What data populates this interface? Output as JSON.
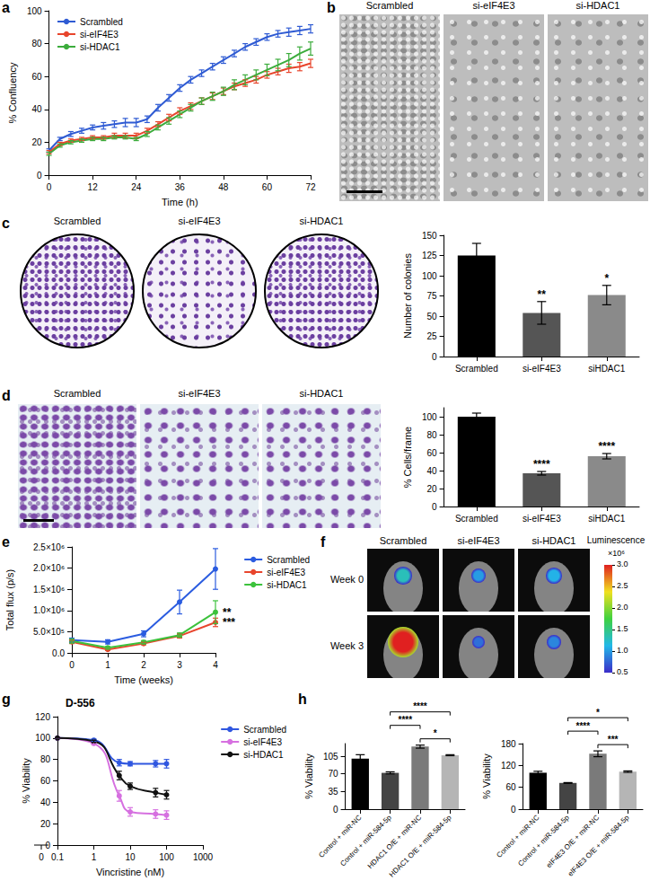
{
  "chart_data": [
    {
      "panel": "a",
      "type": "line",
      "x_label": "Time (h)",
      "y_label": "% Confluency",
      "x": [
        0,
        3,
        6,
        9,
        12,
        15,
        18,
        21,
        24,
        27,
        30,
        33,
        36,
        39,
        42,
        45,
        48,
        51,
        54,
        57,
        60,
        63,
        66,
        69,
        72
      ],
      "xlim": [
        0,
        72
      ],
      "xticks": [
        0,
        12,
        24,
        36,
        48,
        60,
        72
      ],
      "ylim": [
        0,
        100
      ],
      "yticks": [
        0,
        20,
        40,
        60,
        80,
        100
      ],
      "grid": false,
      "legend": "upper left",
      "marker": "none",
      "series": [
        {
          "name": "Scrambled",
          "color": "#2f5bd3",
          "values": [
            15,
            22,
            25,
            27,
            29,
            30,
            31,
            32,
            32,
            34,
            41,
            47,
            53,
            58,
            62,
            66,
            70,
            74,
            78,
            81,
            84,
            86,
            87,
            88,
            89
          ],
          "errors": [
            1,
            1,
            1.5,
            1.5,
            1.5,
            2,
            2,
            2.5,
            2.5,
            2,
            2,
            2,
            2,
            2,
            2,
            2,
            2,
            2,
            2,
            2,
            2,
            2,
            2.5,
            2.5,
            2.5
          ]
        },
        {
          "name": "si-eIF4E3",
          "color": "#e8452c",
          "values": [
            14,
            19,
            21,
            22,
            23,
            23,
            24,
            24,
            24,
            27,
            31,
            35,
            39,
            42,
            45,
            48,
            51,
            54,
            56,
            58,
            61,
            63,
            65,
            66,
            68
          ],
          "errors": [
            1,
            1,
            1,
            1,
            1,
            1,
            1.5,
            1.5,
            1.5,
            1.5,
            1.5,
            2,
            2,
            2,
            2,
            2,
            2,
            2,
            2,
            2,
            2,
            2,
            2.5,
            2.5,
            2.5
          ]
        },
        {
          "name": "si-HDAC1",
          "color": "#3cac3c",
          "values": [
            13,
            18,
            20,
            21,
            22,
            22,
            23,
            23,
            22,
            25,
            29,
            33,
            37,
            41,
            45,
            48,
            51,
            55,
            58,
            61,
            64,
            67,
            70,
            74,
            77
          ],
          "errors": [
            1,
            1,
            1,
            1,
            1,
            1,
            1,
            1,
            1,
            1.5,
            1.5,
            2,
            2,
            2,
            2,
            2.5,
            2.5,
            3,
            3,
            3,
            3.5,
            3.5,
            4,
            4,
            4
          ]
        }
      ]
    },
    {
      "panel": "c",
      "type": "bar",
      "y_label": "Number of colonies",
      "categories": [
        "Scrambled",
        "si-eIF4E3",
        "siHDAC1"
      ],
      "values": [
        125,
        54,
        76
      ],
      "errors": [
        15,
        14,
        12
      ],
      "colors": [
        "#000000",
        "#555555",
        "#8a8a8a"
      ],
      "significance": [
        null,
        "**",
        "*"
      ],
      "ylim": [
        0,
        150
      ],
      "yticks": [
        0,
        25,
        50,
        75,
        100,
        125,
        150
      ],
      "grid": false
    },
    {
      "panel": "d",
      "type": "bar",
      "y_label": "% Cells/frame",
      "categories": [
        "Scrambled",
        "si-eIF4E3",
        "siHDAC1"
      ],
      "values": [
        100,
        37,
        56
      ],
      "errors": [
        4,
        2,
        3
      ],
      "colors": [
        "#000000",
        "#555555",
        "#8a8a8a"
      ],
      "significance": [
        null,
        "****",
        "****"
      ],
      "ylim": [
        0,
        110
      ],
      "yticks": [
        0,
        20,
        40,
        60,
        80,
        100
      ],
      "grid": false
    },
    {
      "panel": "e",
      "type": "line",
      "x_label": "Time (weeks)",
      "y_label": "Total flux (p/s)",
      "x": [
        0,
        1,
        2,
        3,
        4
      ],
      "xlim": [
        0,
        4
      ],
      "xticks": [
        0,
        1,
        2,
        3,
        4
      ],
      "ylim": [
        0,
        2500000
      ],
      "yticks": [
        {
          "value": 0,
          "label": "0.0"
        },
        {
          "value": 500000,
          "label": "5.0×10⁵"
        },
        {
          "value": 1000000,
          "label": "1.0×10⁶"
        },
        {
          "value": 1500000,
          "label": "1.5×10⁶"
        },
        {
          "value": 2000000,
          "label": "2.0×10⁶"
        },
        {
          "value": 2500000,
          "label": "2.5×10⁶"
        }
      ],
      "grid": false,
      "legend": "right",
      "marker": "circle",
      "series": [
        {
          "name": "Scrambled",
          "color": "#2b5ce0",
          "values": [
            300000,
            260000,
            450000,
            1200000,
            1980000
          ],
          "errors": [
            50000,
            50000,
            70000,
            280000,
            480000
          ]
        },
        {
          "name": "si-eIF4E3",
          "color": "#e8452c",
          "values": [
            260000,
            80000,
            220000,
            400000,
            720000
          ],
          "errors": [
            40000,
            20000,
            30000,
            50000,
            100000
          ],
          "significance": "***"
        },
        {
          "name": "si-HDAC1",
          "color": "#3cc23c",
          "values": [
            280000,
            120000,
            250000,
            420000,
            960000
          ],
          "errors": [
            50000,
            30000,
            40000,
            50000,
            270000
          ],
          "significance": "**"
        }
      ]
    },
    {
      "panel": "g",
      "type": "line",
      "title": "D-556",
      "x_label": "Vincristine (nM)",
      "y_label": "% Viability",
      "log": "x",
      "x_origin_label": "0",
      "x": [
        0.1,
        1,
        5,
        10,
        50,
        100
      ],
      "xlim": [
        0.1,
        1000
      ],
      "xticks": [
        0.1,
        1,
        10,
        100,
        1000
      ],
      "ylim": [
        0,
        120
      ],
      "yticks": [
        0,
        20,
        40,
        60,
        80,
        100,
        120
      ],
      "grid": false,
      "legend": "right",
      "marker": "circle",
      "line_style": "smooth",
      "series": [
        {
          "name": "Scrambled",
          "color": "#3057e0",
          "values": [
            100,
            98,
            77,
            76,
            76,
            76
          ],
          "errors": [
            0,
            1,
            3,
            2,
            3,
            4
          ]
        },
        {
          "name": "si-eIF4E3",
          "color": "#d670e0",
          "values": [
            100,
            95,
            46,
            31,
            29,
            28
          ],
          "errors": [
            0,
            1,
            5,
            4,
            4,
            4
          ]
        },
        {
          "name": "si-HDAC1",
          "color": "#111111",
          "values": [
            100,
            97,
            65,
            55,
            49,
            47
          ],
          "errors": [
            0,
            1,
            4,
            3,
            4,
            4
          ]
        }
      ]
    },
    {
      "panel": "h",
      "type": "bar",
      "y_label": "% Viability",
      "categories": [
        "Control + miR-NC",
        "Control + miR-584-5p",
        "HDAC1 O/E + miR-NC",
        "HDAC1 O/E + miR-584-5p"
      ],
      "values": [
        100,
        72,
        124,
        107
      ],
      "errors": [
        8,
        2,
        3,
        1
      ],
      "colors": [
        "#000000",
        "#444444",
        "#7a7a7a",
        "#b5b5b5"
      ],
      "comparisons": [
        {
          "from": 2,
          "to": 3,
          "label": "*"
        },
        {
          "from": 1,
          "to": 2,
          "label": "****"
        },
        {
          "from": 1,
          "to": 3,
          "label": "****"
        }
      ],
      "ylim": [
        0,
        130
      ],
      "yticks": [
        0,
        35,
        70,
        105
      ],
      "grid": false
    },
    {
      "type": "bar",
      "y_label": "% Viability",
      "categories": [
        "Control + miR-NC",
        "Control + miR-584-5p",
        "eIF4E3 O/E + miR-NC",
        "eIF4E3 O/E + miR-584-5p"
      ],
      "values": [
        100,
        72,
        152,
        103
      ],
      "errors": [
        4,
        1,
        8,
        2
      ],
      "colors": [
        "#000000",
        "#444444",
        "#7a7a7a",
        "#b5b5b5"
      ],
      "comparisons": [
        {
          "from": 2,
          "to": 3,
          "label": "***"
        },
        {
          "from": 1,
          "to": 2,
          "label": "****"
        },
        {
          "from": 1,
          "to": 3,
          "label": "*"
        }
      ],
      "ylim": [
        0,
        180
      ],
      "yticks": [
        0,
        60,
        120,
        180
      ],
      "grid": false
    }
  ],
  "image_panels": [
    {
      "panel": "b",
      "type": "micrograph",
      "labels": [
        "Scrambled",
        "si-eIF4E3",
        "si-HDAC1"
      ]
    },
    {
      "panel": "c",
      "type": "plate",
      "labels": [
        "Scrambled",
        "si-eIF4E3",
        "si-HDAC1"
      ]
    },
    {
      "panel": "d",
      "type": "transwell",
      "labels": [
        "Scrambled",
        "si-eIF4E3",
        "si-HDAC1"
      ]
    },
    {
      "panel": "f",
      "type": "bioluminescence",
      "labels": [
        "Scrambled",
        "si-eIF4E3",
        "si-HDAC1"
      ],
      "rows": [
        "Week 0",
        "Week 3"
      ],
      "signal": [
        [
          1.3,
          1.0,
          1.1
        ],
        [
          3.0,
          0.8,
          0.9
        ]
      ],
      "colorbar": {
        "title": "Luminescence",
        "range": [
          0.5,
          3
        ],
        "ticks": [
          0.5,
          {
            "value": 1,
            "label": "1.0"
          },
          1.5,
          {
            "value": 2,
            "label": "2.0"
          },
          2.5,
          {
            "value": 3,
            "label": "3.0"
          }
        ],
        "multiplier": "×10⁶"
      }
    }
  ]
}
